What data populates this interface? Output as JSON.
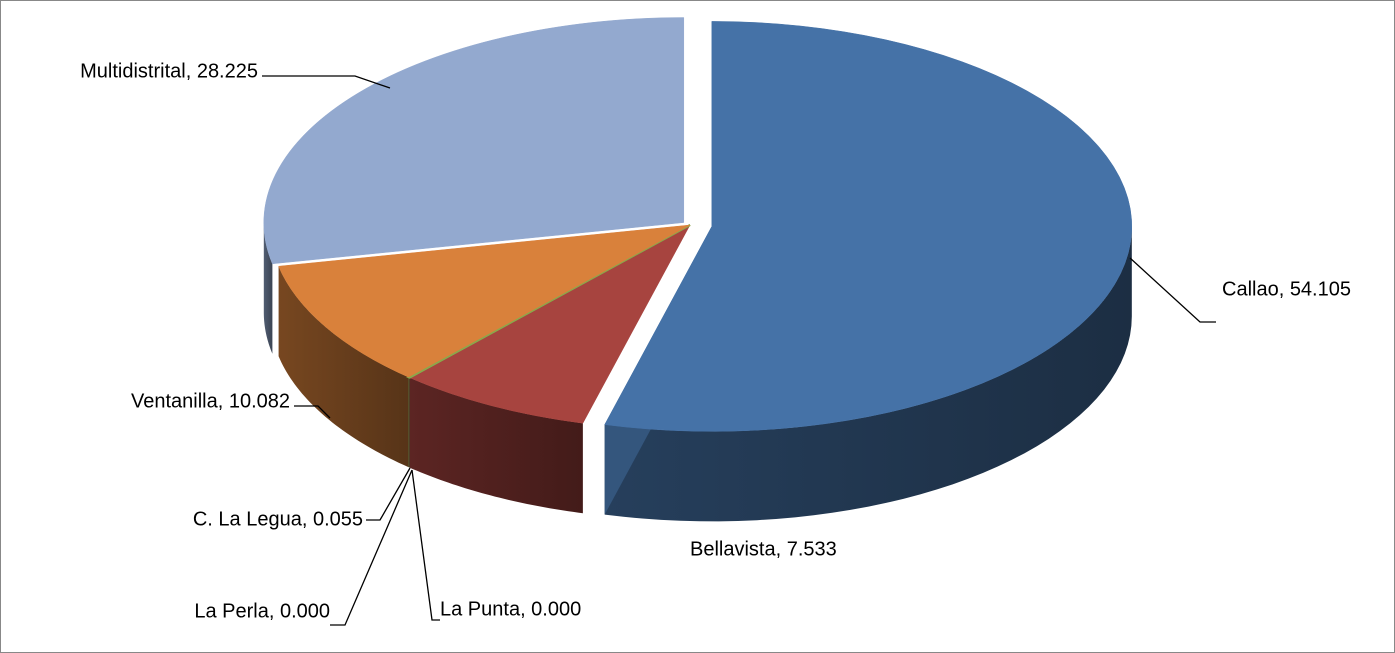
{
  "chart_data": {
    "type": "pie3d",
    "categories": [
      "Callao",
      "Bellavista",
      "La Punta",
      "La Perla",
      "C. La Legua",
      "Ventanilla",
      "Multidistrital"
    ],
    "values": [
      54.105,
      7.533,
      0.0,
      0.0,
      0.055,
      10.082,
      28.225
    ],
    "value_labels": [
      "Callao, 54.105",
      "Bellavista, 7.533",
      "La Punta, 0.000",
      "La Perla, 0.000",
      "C. La Legua, 0.055",
      "Ventanilla, 10.082",
      "Multidistrital, 28.225"
    ],
    "colors": [
      "#4572a7",
      "#a7443f",
      "#7f9a3c",
      "#8aa84c",
      "#8aa84c",
      "#d9813b",
      "#93a9cf"
    ]
  }
}
